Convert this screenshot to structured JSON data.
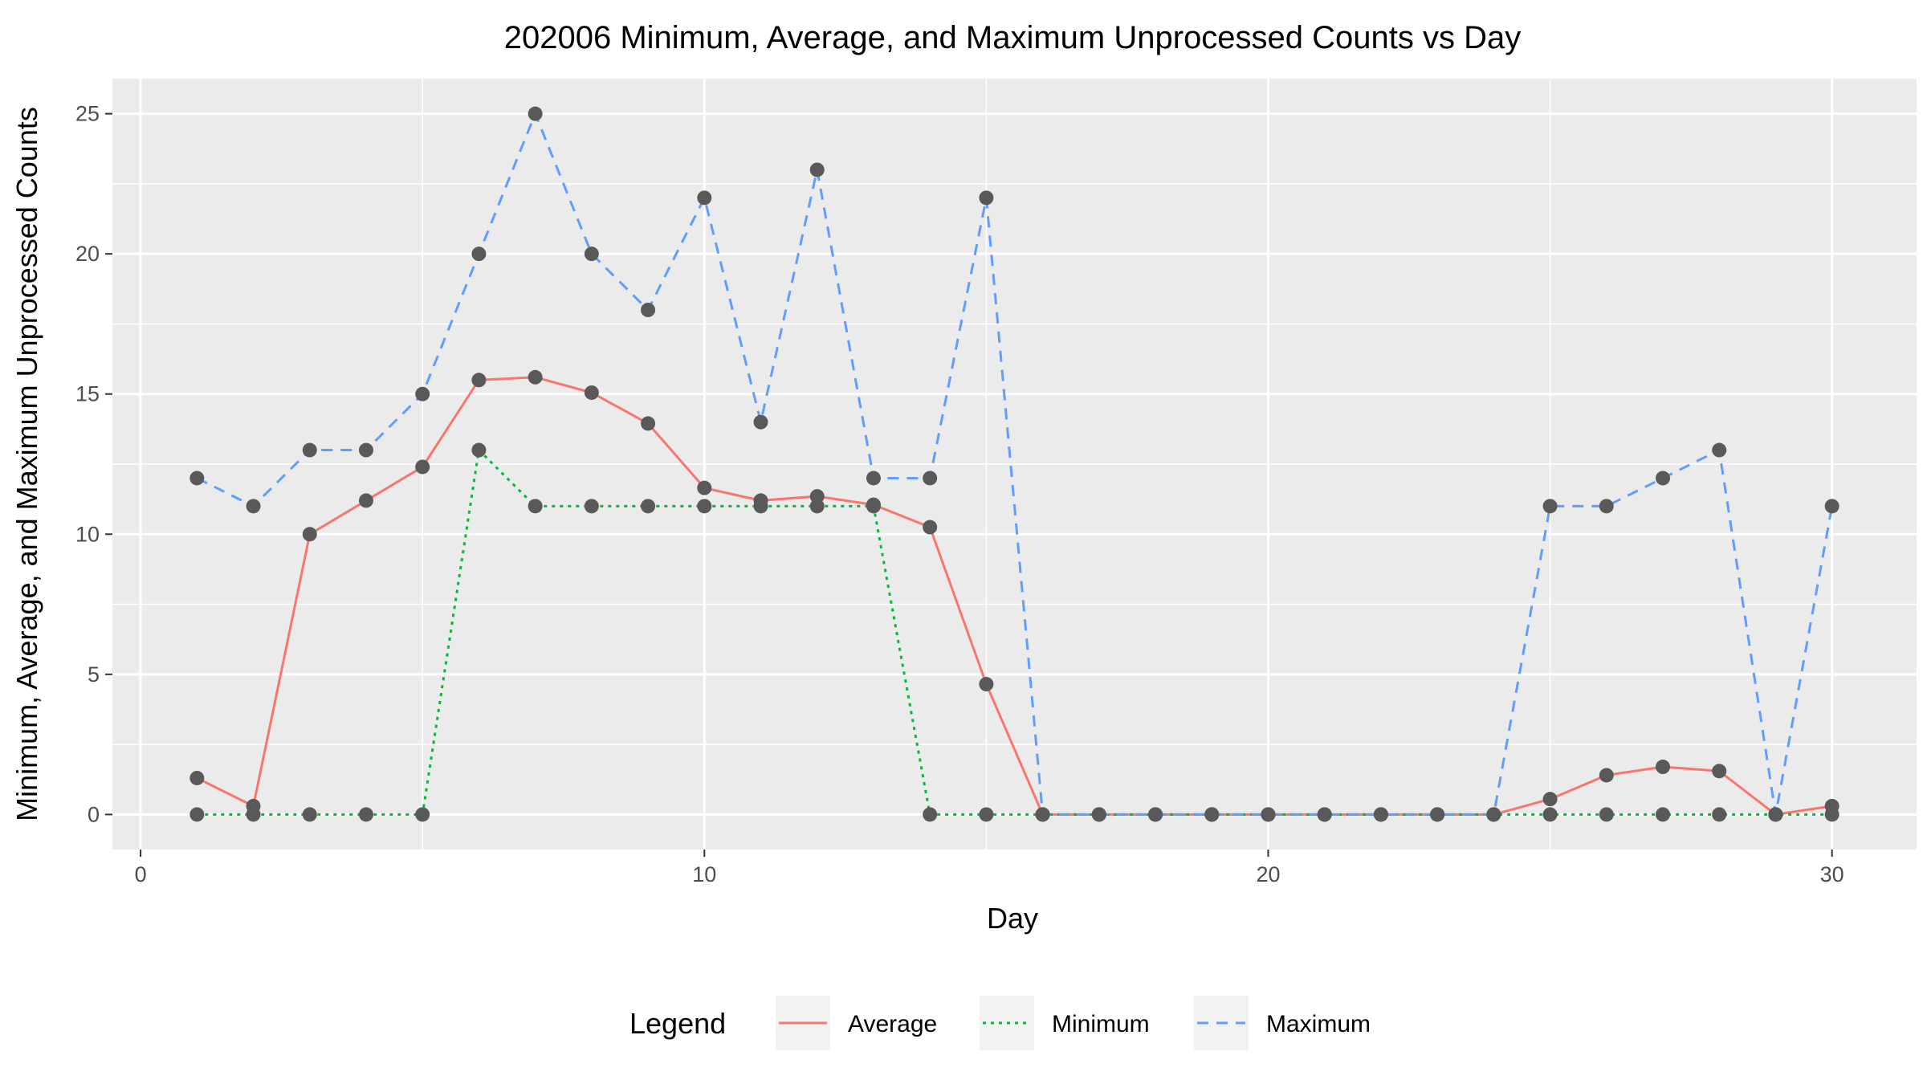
{
  "chart_data": {
    "type": "line",
    "title": "202006 Minimum, Average, and Maximum Unprocessed Counts vs Day",
    "xlabel": "Day",
    "ylabel": "Minimum, Average, and Maximum Unprocessed Counts",
    "xlim": [
      -0.5,
      31.5
    ],
    "ylim": [
      -1.25,
      26.25
    ],
    "x_major_ticks": [
      0,
      10,
      20,
      30
    ],
    "x_tick_labels": [
      "0",
      "10",
      "20",
      "30"
    ],
    "y_major_ticks": [
      0,
      5,
      10,
      15,
      20,
      25
    ],
    "y_tick_labels": [
      "0",
      "5",
      "10",
      "15",
      "20",
      "25"
    ],
    "grid": true,
    "legend": {
      "title": "Legend",
      "position": "bottom"
    },
    "x": [
      1,
      2,
      3,
      4,
      5,
      6,
      7,
      8,
      9,
      10,
      11,
      12,
      13,
      14,
      15,
      16,
      17,
      18,
      19,
      20,
      21,
      22,
      23,
      24,
      25,
      26,
      27,
      28,
      29,
      30
    ],
    "series": [
      {
        "name": "Average",
        "color": "#F8766D",
        "dash": "solid",
        "values": [
          1.3,
          0.3,
          10,
          11.2,
          12.4,
          15.5,
          15.6,
          15.05,
          13.95,
          11.65,
          11.2,
          11.35,
          11.05,
          10.25,
          4.65,
          0,
          0,
          0,
          0,
          0,
          0,
          0,
          0,
          0,
          0.55,
          1.4,
          1.7,
          1.55,
          0,
          0.3
        ]
      },
      {
        "name": "Minimum",
        "color": "#00BA38",
        "dash": "dotted",
        "values": [
          0,
          0,
          0,
          0,
          0,
          13,
          11,
          11,
          11,
          11,
          11,
          11,
          11,
          0,
          0,
          0,
          0,
          0,
          0,
          0,
          0,
          0,
          0,
          0,
          0,
          0,
          0,
          0,
          0,
          0
        ]
      },
      {
        "name": "Maximum",
        "color": "#619CFF",
        "dash": "dashed",
        "values": [
          12,
          11,
          13,
          13,
          15,
          20,
          25,
          20,
          18,
          22,
          14,
          23,
          12,
          12,
          22,
          0,
          0,
          0,
          0,
          0,
          0,
          0,
          0,
          0,
          11,
          11,
          12,
          13,
          0,
          11
        ]
      }
    ],
    "point_color": "#595959",
    "panel_background": "#EBEBEB",
    "grid_color": "#FFFFFF"
  }
}
